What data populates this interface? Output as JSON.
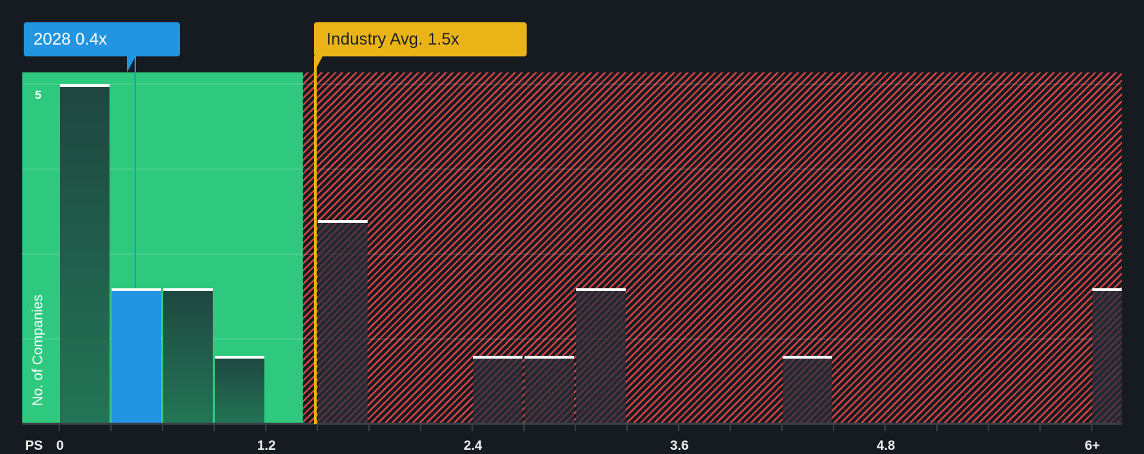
{
  "labels": {
    "company_tooltip": "2028 0.4x",
    "industry_tooltip": "Industry Avg. 1.5x",
    "y_axis_label": "No. of Companies",
    "x_axis_prefix": "PS",
    "y_tick_top": "5"
  },
  "colors": {
    "background": "#161b22",
    "undervalued_zone": "#2ec97e",
    "overvalued_stripes": "#d94444",
    "company_highlight": "#2394df",
    "industry_marker": "#eab317",
    "bar_green_top": "#1f4640",
    "bar_green_bottom": "#237556",
    "bar_cap": "#ffffff"
  },
  "chart_data": {
    "type": "bar",
    "title": "",
    "xlabel": "PS",
    "ylabel": "No. of Companies",
    "bin_width": 0.3,
    "categories": [
      "0-0.3",
      "0.3-0.6",
      "0.6-0.9",
      "0.9-1.2",
      "1.2-1.5",
      "1.5-1.8",
      "1.8-2.1",
      "2.1-2.4",
      "2.4-2.7",
      "2.7-3.0",
      "3.0-3.3",
      "3.3-3.6",
      "3.6-3.9",
      "3.9-4.2",
      "4.2-4.5",
      "4.5-4.8",
      "4.8-5.1",
      "5.1-5.4",
      "5.4-5.7",
      "5.7-6.0",
      "6+"
    ],
    "values": [
      5,
      2,
      2,
      1,
      0,
      3,
      0,
      0,
      1,
      1,
      2,
      0,
      0,
      0,
      1,
      0,
      0,
      0,
      0,
      0,
      2
    ],
    "highlight_index": 1,
    "x_tick_labels": [
      {
        "value": 0,
        "label": "0"
      },
      {
        "value": 1.2,
        "label": "1.2"
      },
      {
        "value": 2.4,
        "label": "2.4"
      },
      {
        "value": 3.6,
        "label": "3.6"
      },
      {
        "value": 4.8,
        "label": "4.8"
      },
      {
        "value": 6,
        "label": "6+"
      }
    ],
    "y_tick_labels": [
      {
        "value": 5,
        "label": "5"
      }
    ],
    "ylim": [
      0,
      5.15
    ],
    "gridlines_y": [
      1.25,
      2.5,
      3.75,
      5
    ],
    "annotations": [
      {
        "label": "2028 0.4x",
        "x": 0.4,
        "color": "#2394df"
      },
      {
        "label": "Industry Avg. 1.5x",
        "x": 1.5,
        "color": "#eab317"
      }
    ],
    "zones": [
      {
        "name": "undervalued",
        "from": 0,
        "to": 1.35,
        "color": "#2ec97e"
      },
      {
        "name": "overvalued",
        "from": 1.35,
        "to": "6+",
        "pattern": "diagonal-stripes",
        "color": "#d94444"
      }
    ],
    "legend": null
  }
}
